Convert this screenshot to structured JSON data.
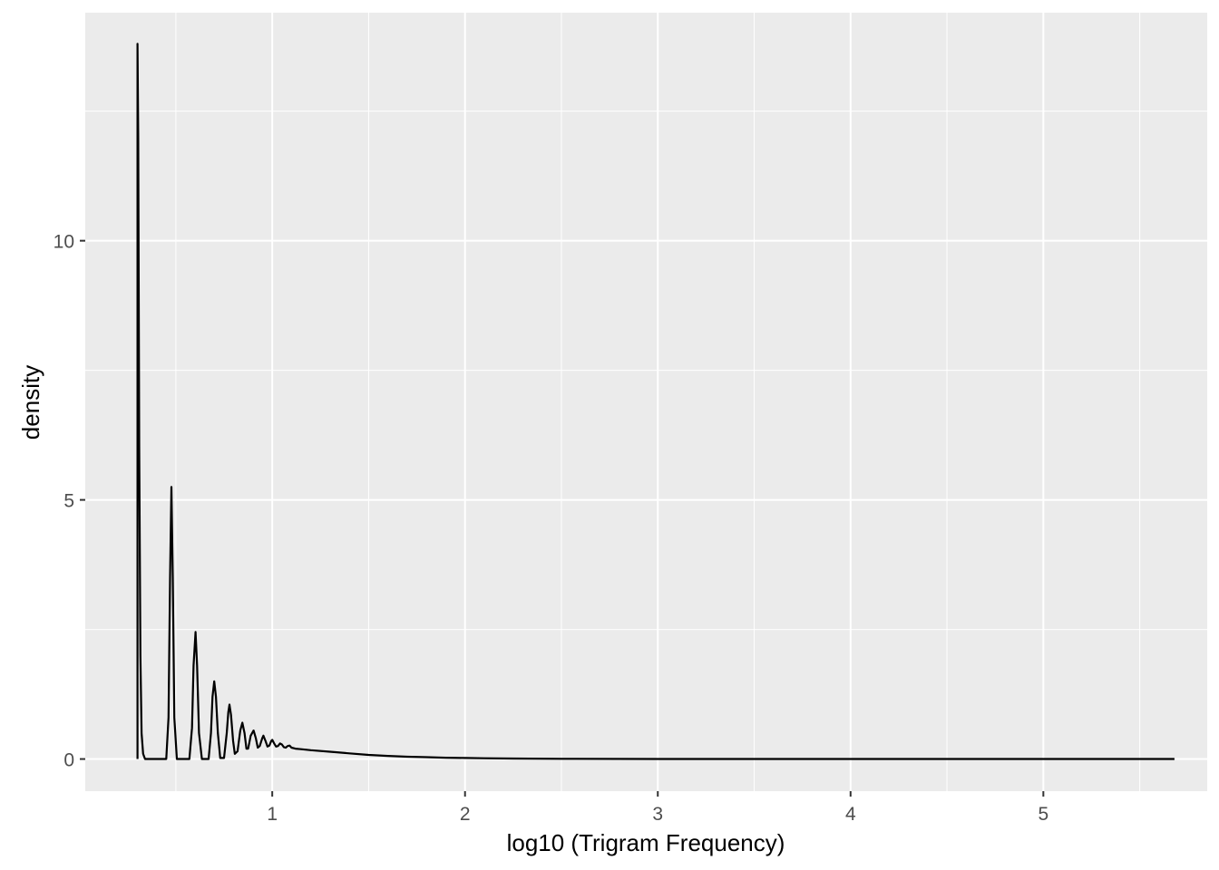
{
  "chart_data": {
    "type": "line",
    "title": "",
    "xlabel": "log10 (Trigram Frequency)",
    "ylabel": "density",
    "xlim": [
      0.03,
      5.85
    ],
    "ylim": [
      -0.62,
      14.4
    ],
    "x_ticks": [
      1,
      2,
      3,
      4,
      5
    ],
    "x_tick_labels": [
      "1",
      "2",
      "3",
      "4",
      "5"
    ],
    "x_minor_ticks": [
      0.5,
      1.5,
      2.5,
      3.5,
      4.5,
      5.5
    ],
    "y_ticks": [
      0,
      5,
      10
    ],
    "y_tick_labels": [
      "0",
      "5",
      "10"
    ],
    "y_minor_ticks": [
      2.5,
      7.5,
      12.5
    ],
    "grid": true,
    "legend": "none",
    "colors": {
      "panel_background": "#ebebeb",
      "grid": "#ffffff",
      "line": "#000000",
      "tick_text": "#4d4d4d"
    },
    "series": [
      {
        "color": "#000000",
        "points": [
          [
            0.301,
            0
          ],
          [
            0.301,
            13.8
          ],
          [
            0.305,
            12.0
          ],
          [
            0.31,
            6.0
          ],
          [
            0.316,
            2.0
          ],
          [
            0.322,
            0.5
          ],
          [
            0.33,
            0.1
          ],
          [
            0.34,
            0
          ],
          [
            0.45,
            0
          ],
          [
            0.462,
            0.8
          ],
          [
            0.47,
            3.5
          ],
          [
            0.477,
            5.25
          ],
          [
            0.484,
            3.5
          ],
          [
            0.492,
            0.8
          ],
          [
            0.505,
            0
          ],
          [
            0.57,
            0
          ],
          [
            0.584,
            0.6
          ],
          [
            0.592,
            1.8
          ],
          [
            0.602,
            2.45
          ],
          [
            0.61,
            1.8
          ],
          [
            0.62,
            0.5
          ],
          [
            0.635,
            0
          ],
          [
            0.67,
            0
          ],
          [
            0.682,
            0.5
          ],
          [
            0.69,
            1.2
          ],
          [
            0.699,
            1.5
          ],
          [
            0.708,
            1.2
          ],
          [
            0.718,
            0.5
          ],
          [
            0.73,
            0.02
          ],
          [
            0.75,
            0.02
          ],
          [
            0.764,
            0.5
          ],
          [
            0.772,
            0.9
          ],
          [
            0.778,
            1.05
          ],
          [
            0.786,
            0.85
          ],
          [
            0.797,
            0.35
          ],
          [
            0.806,
            0.1
          ],
          [
            0.82,
            0.15
          ],
          [
            0.834,
            0.55
          ],
          [
            0.845,
            0.7
          ],
          [
            0.856,
            0.5
          ],
          [
            0.866,
            0.2
          ],
          [
            0.875,
            0.2
          ],
          [
            0.888,
            0.45
          ],
          [
            0.903,
            0.55
          ],
          [
            0.915,
            0.4
          ],
          [
            0.925,
            0.22
          ],
          [
            0.935,
            0.25
          ],
          [
            0.948,
            0.4
          ],
          [
            0.954,
            0.45
          ],
          [
            0.965,
            0.35
          ],
          [
            0.975,
            0.24
          ],
          [
            0.985,
            0.26
          ],
          [
            0.995,
            0.35
          ],
          [
            1.0,
            0.37
          ],
          [
            1.01,
            0.3
          ],
          [
            1.02,
            0.24
          ],
          [
            1.03,
            0.25
          ],
          [
            1.04,
            0.3
          ],
          [
            1.05,
            0.28
          ],
          [
            1.06,
            0.23
          ],
          [
            1.07,
            0.22
          ],
          [
            1.08,
            0.25
          ],
          [
            1.09,
            0.26
          ],
          [
            1.1,
            0.22
          ],
          [
            1.12,
            0.2
          ],
          [
            1.15,
            0.19
          ],
          [
            1.2,
            0.17
          ],
          [
            1.3,
            0.14
          ],
          [
            1.4,
            0.11
          ],
          [
            1.5,
            0.08
          ],
          [
            1.6,
            0.06
          ],
          [
            1.7,
            0.045
          ],
          [
            1.8,
            0.035
          ],
          [
            1.9,
            0.025
          ],
          [
            2.0,
            0.02
          ],
          [
            2.1,
            0.015
          ],
          [
            2.25,
            0.01
          ],
          [
            2.5,
            0.004
          ],
          [
            3.0,
            0.001
          ],
          [
            4.0,
            0.0
          ],
          [
            5.0,
            0.0
          ],
          [
            5.68,
            0.0
          ]
        ]
      }
    ]
  }
}
